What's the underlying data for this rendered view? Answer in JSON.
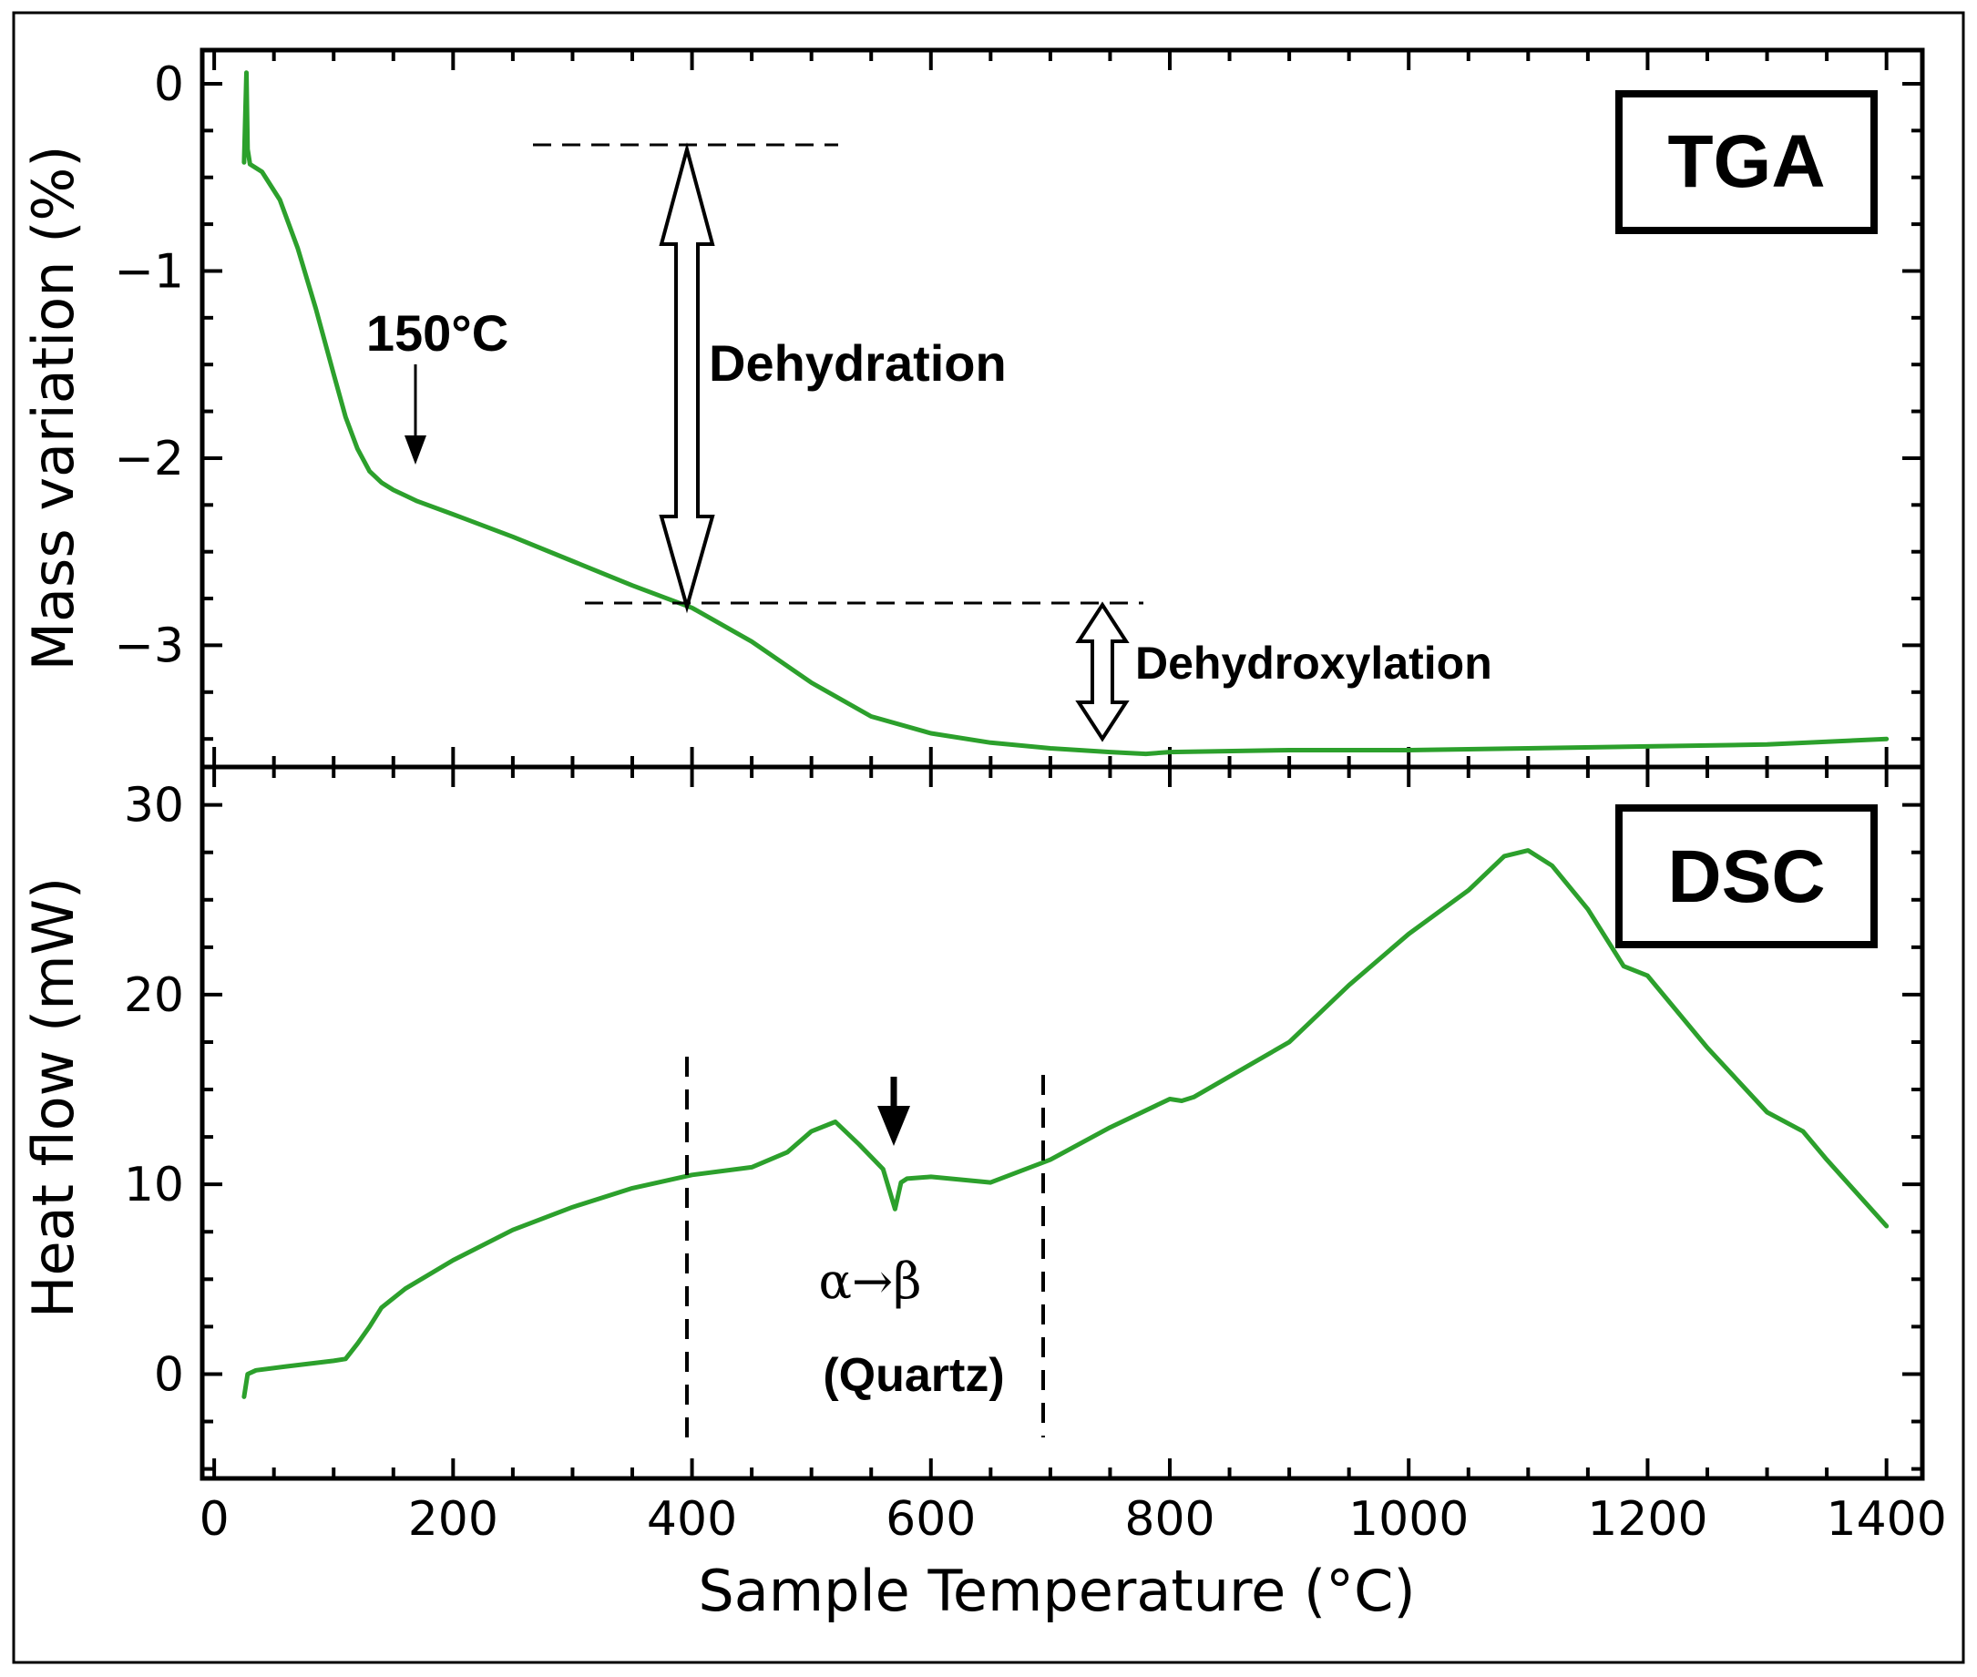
{
  "chart_data": [
    {
      "panel": "top",
      "type": "line",
      "title": "TGA",
      "xlabel": "Sample Temperature (°C)",
      "ylabel": "Mass variation (%)",
      "xlim": [
        -10,
        1430
      ],
      "ylim": [
        -3.65,
        0.18
      ],
      "y_ticks": [
        0,
        -1,
        -2,
        -3
      ],
      "y_tick_labels": [
        "0",
        "−1",
        "−2",
        "−3"
      ],
      "line_color": "#2ca02c",
      "series": [
        {
          "name": "TGA",
          "x": [
            25,
            27,
            28,
            30,
            40,
            55,
            70,
            85,
            100,
            110,
            120,
            130,
            140,
            150,
            160,
            170,
            200,
            250,
            300,
            350,
            400,
            450,
            500,
            550,
            600,
            650,
            700,
            750,
            780,
            800,
            900,
            1000,
            1100,
            1200,
            1300,
            1400
          ],
          "y": [
            -0.42,
            0.06,
            -0.35,
            -0.43,
            -0.47,
            -0.62,
            -0.88,
            -1.2,
            -1.55,
            -1.78,
            -1.95,
            -2.07,
            -2.13,
            -2.17,
            -2.2,
            -2.23,
            -2.3,
            -2.42,
            -2.55,
            -2.68,
            -2.8,
            -2.98,
            -3.2,
            -3.38,
            -3.47,
            -3.52,
            -3.55,
            -3.57,
            -3.58,
            -3.57,
            -3.56,
            -3.56,
            -3.55,
            -3.54,
            -3.53,
            -3.5
          ]
        }
      ],
      "annotations": {
        "label_150": "150°C",
        "dehydration": "Dehydration",
        "dehydroxylation": "Dehydroxylation"
      }
    },
    {
      "panel": "bottom",
      "type": "line",
      "title": "DSC",
      "xlabel": "Sample Temperature (°C)",
      "ylabel": "Heat flow (mW)",
      "xlim": [
        -10,
        1430
      ],
      "ylim": [
        -5.5,
        32
      ],
      "x_ticks": [
        0,
        200,
        400,
        600,
        800,
        1000,
        1200,
        1400
      ],
      "x_tick_labels": [
        "0",
        "200",
        "400",
        "600",
        "800",
        "1000",
        "1200",
        "1400"
      ],
      "y_ticks": [
        0,
        10,
        20,
        30
      ],
      "y_tick_labels": [
        "0",
        "10",
        "20",
        "30"
      ],
      "line_color": "#2ca02c",
      "series": [
        {
          "name": "DSC",
          "x": [
            25,
            28,
            35,
            60,
            100,
            110,
            120,
            130,
            140,
            160,
            200,
            250,
            300,
            350,
            400,
            450,
            480,
            500,
            520,
            540,
            560,
            570,
            575,
            580,
            600,
            650,
            700,
            750,
            800,
            810,
            820,
            900,
            950,
            1000,
            1050,
            1080,
            1100,
            1120,
            1150,
            1180,
            1200,
            1250,
            1300,
            1330,
            1350,
            1400
          ],
          "y": [
            -1.2,
            0,
            0.2,
            0.4,
            0.7,
            0.8,
            1.6,
            2.5,
            3.5,
            4.5,
            6.0,
            7.6,
            8.8,
            9.8,
            10.5,
            10.9,
            11.7,
            12.8,
            13.3,
            12.1,
            10.8,
            8.7,
            10.1,
            10.3,
            10.4,
            10.1,
            11.3,
            13.0,
            14.5,
            14.4,
            14.6,
            17.5,
            20.5,
            23.2,
            25.5,
            27.3,
            27.6,
            26.8,
            24.5,
            21.5,
            21.0,
            17.2,
            13.8,
            12.8,
            11.3,
            7.8
          ]
        }
      ],
      "annotations": {
        "transition": "α→β",
        "mineral": "(Quartz)"
      }
    }
  ]
}
